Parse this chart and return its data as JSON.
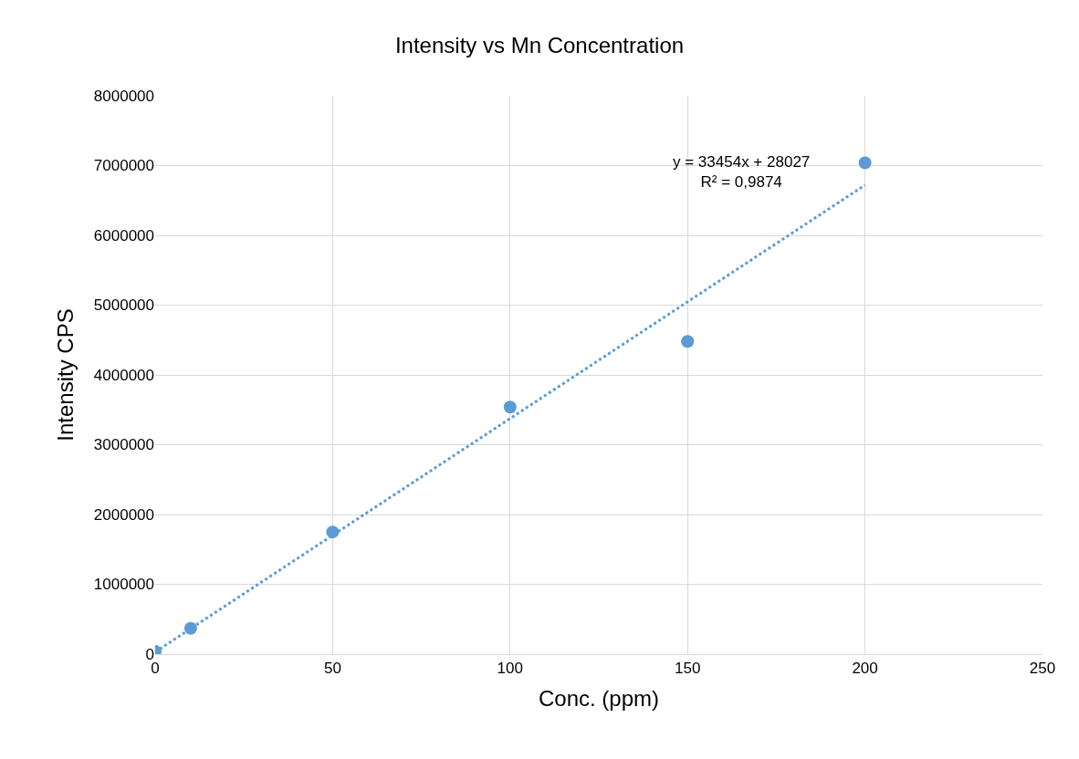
{
  "chart_data": {
    "type": "scatter",
    "title": "Intensity vs Mn Concentration",
    "xlabel": "Conc. (ppm)",
    "ylabel": "Intensity CPS",
    "xlim": [
      0,
      250
    ],
    "xticks": [
      0,
      50,
      100,
      150,
      200,
      250
    ],
    "ylim": [
      0,
      8000000
    ],
    "yticks": [
      0,
      1000000,
      2000000,
      3000000,
      4000000,
      5000000,
      6000000,
      7000000,
      8000000
    ],
    "grid": true,
    "marker": "circle",
    "series": [
      {
        "color": "#5b9bd5",
        "x": [
          0,
          10,
          50,
          100,
          150,
          200
        ],
        "values": [
          40000,
          370000,
          1750000,
          3540000,
          4480000,
          7040000
        ]
      },
      {
        "type": "line",
        "color": "#5b9bd5",
        "line_style": "dotted",
        "marker": "none",
        "x": [
          0,
          200
        ],
        "values": [
          30000,
          6720000
        ]
      }
    ],
    "annotations": [
      "y = 33454x + 28027\nR² = 0,9874"
    ]
  }
}
